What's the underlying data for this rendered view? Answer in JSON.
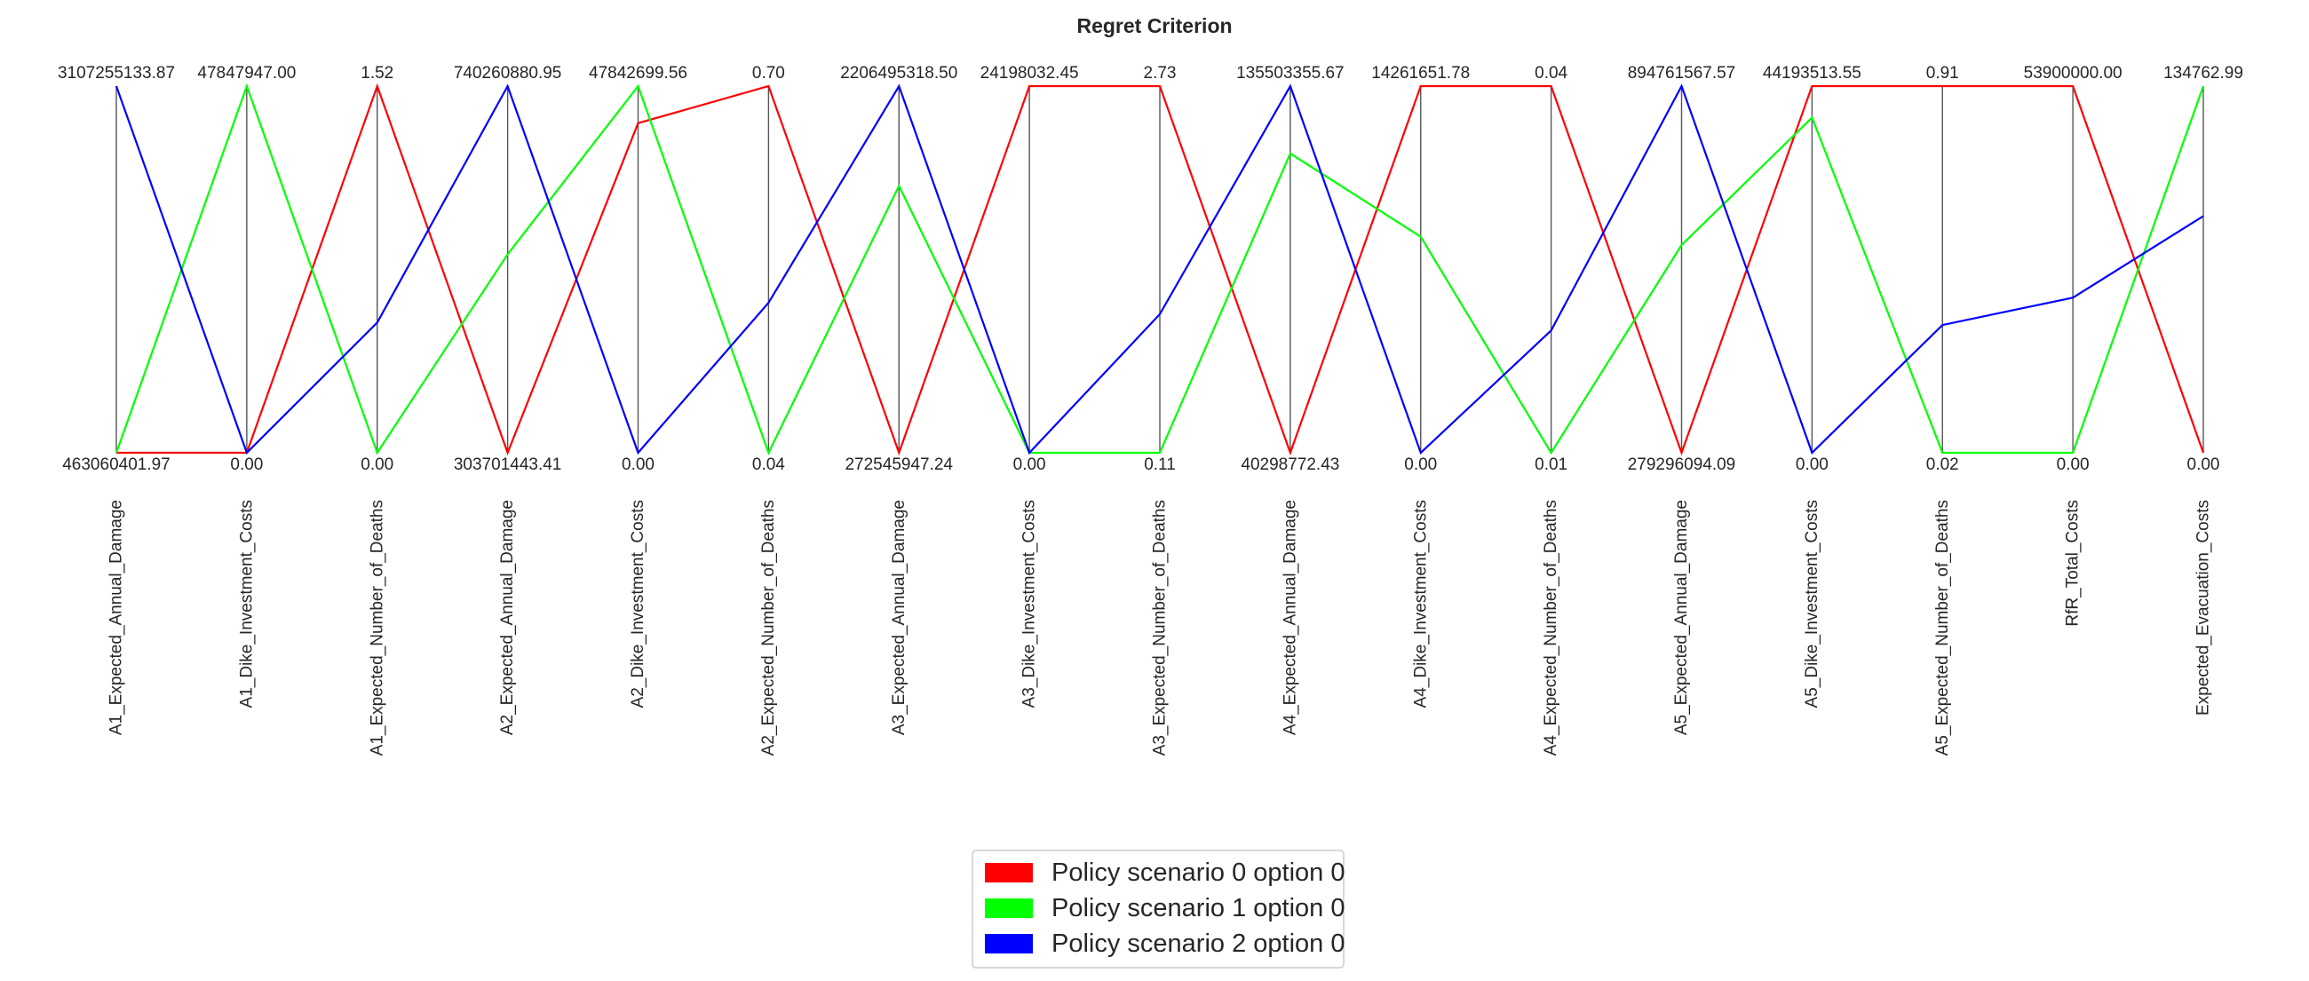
{
  "chart_data": {
    "type": "parallel_coordinates",
    "title": "Regret Criterion",
    "axes": [
      {
        "name": "A1_Expected_Annual_Damage",
        "max_label": "3107255133.87",
        "min_label": "463060401.97",
        "max": 3107255133.87,
        "min": 463060401.97
      },
      {
        "name": "A1_Dike_Investment_Costs",
        "max_label": "47847947.00",
        "min_label": "0.00",
        "max": 47847947.0,
        "min": 0.0
      },
      {
        "name": "A1_Expected_Number_of_Deaths",
        "max_label": "1.52",
        "min_label": "0.00",
        "max": 1.52,
        "min": 0.0
      },
      {
        "name": "A2_Expected_Annual_Damage",
        "max_label": "740260880.95",
        "min_label": "303701443.41",
        "max": 740260880.95,
        "min": 303701443.41
      },
      {
        "name": "A2_Dike_Investment_Costs",
        "max_label": "47842699.56",
        "min_label": "0.00",
        "max": 47842699.56,
        "min": 0.0
      },
      {
        "name": "A2_Expected_Number_of_Deaths",
        "max_label": "0.70",
        "min_label": "0.04",
        "max": 0.7,
        "min": 0.04
      },
      {
        "name": "A3_Expected_Annual_Damage",
        "max_label": "2206495318.50",
        "min_label": "272545947.24",
        "max": 2206495318.5,
        "min": 272545947.24
      },
      {
        "name": "A3_Dike_Investment_Costs",
        "max_label": "24198032.45",
        "min_label": "0.00",
        "max": 24198032.45,
        "min": 0.0
      },
      {
        "name": "A3_Expected_Number_of_Deaths",
        "max_label": "2.73",
        "min_label": "0.11",
        "max": 2.73,
        "min": 0.11
      },
      {
        "name": "A4_Expected_Annual_Damage",
        "max_label": "135503355.67",
        "min_label": "40298772.43",
        "max": 135503355.67,
        "min": 40298772.43
      },
      {
        "name": "A4_Dike_Investment_Costs",
        "max_label": "14261651.78",
        "min_label": "0.00",
        "max": 14261651.78,
        "min": 0.0
      },
      {
        "name": "A4_Expected_Number_of_Deaths",
        "max_label": "0.04",
        "min_label": "0.01",
        "max": 0.04,
        "min": 0.01
      },
      {
        "name": "A5_Expected_Annual_Damage",
        "max_label": "894761567.57",
        "min_label": "279296094.09",
        "max": 894761567.57,
        "min": 279296094.09
      },
      {
        "name": "A5_Dike_Investment_Costs",
        "max_label": "44193513.55",
        "min_label": "0.00",
        "max": 44193513.55,
        "min": 0.0
      },
      {
        "name": "A5_Expected_Number_of_Deaths",
        "max_label": "0.91",
        "min_label": "0.02",
        "max": 0.91,
        "min": 0.02
      },
      {
        "name": "RfR_Total_Costs",
        "max_label": "53900000.00",
        "min_label": "0.00",
        "max": 53900000.0,
        "min": 0.0
      },
      {
        "name": "Expected_Evacuation_Costs",
        "max_label": "134762.99",
        "min_label": "0.00",
        "max": 134762.99,
        "min": 0.0
      }
    ],
    "series": [
      {
        "name": "Policy scenario 0 option 0",
        "color": "#ff0000",
        "values": [
          463060401.97,
          0.0,
          1.52,
          303701443.41,
          43009000,
          0.7,
          272545947.24,
          24198032.45,
          2.73,
          40298772.43,
          14261651.78,
          0.04,
          279296094.09,
          44193513.55,
          0.91,
          53900000.0,
          0.0
        ]
      },
      {
        "name": "Policy scenario 1 option 0",
        "color": "#00ff00",
        "values": [
          463060401.97,
          47847947.0,
          0.0,
          540000000,
          47842699.56,
          0.04,
          1680000000,
          0.0,
          0.11,
          118000000,
          8400000,
          0.01,
          628000000,
          40400000,
          0.02,
          0.0,
          134762.99
        ]
      },
      {
        "name": "Policy scenario 2 option 0",
        "color": "#0000ff",
        "values": [
          3107255133.87,
          0.0,
          0.54,
          740260880.95,
          0.0,
          0.31,
          2206495318.5,
          0.0,
          1.1,
          135503355.67,
          0.0,
          0.02,
          894761567.57,
          0.0,
          0.33,
          22800000,
          87000
        ]
      }
    ],
    "legend": {
      "position": "bottom-center",
      "entries": [
        "Policy scenario 0 option 0",
        "Policy scenario 1 option 0",
        "Policy scenario 2 option 0"
      ]
    }
  }
}
